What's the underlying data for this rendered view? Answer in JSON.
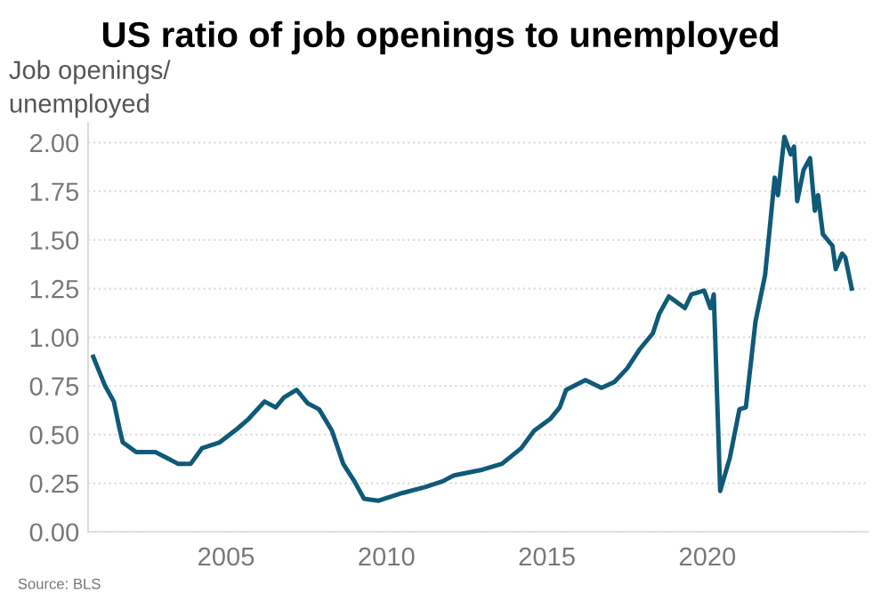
{
  "chart_data": {
    "type": "line",
    "title": "US ratio of job openings to unemployed",
    "ylabel": "Job openings/\nunemployed",
    "annotations": [
      "Source: BLS"
    ],
    "xlim": [
      2000.7,
      2025.0
    ],
    "xticks": [
      2005,
      2010,
      2015,
      2020
    ],
    "ylim": [
      0,
      2.1
    ],
    "yticks": [
      {
        "value": 0,
        "label": "0.00"
      },
      {
        "value": 0.25,
        "label": "0.25"
      },
      {
        "value": 0.5,
        "label": "0.50"
      },
      {
        "value": 0.75,
        "label": "0.75"
      },
      {
        "value": 1,
        "label": "1.00"
      },
      {
        "value": 1.25,
        "label": "1.25"
      },
      {
        "value": 1.5,
        "label": "1.50"
      },
      {
        "value": 1.75,
        "label": "1.75"
      },
      {
        "value": 2,
        "label": "2.00"
      }
    ],
    "grid": "y",
    "legend": false,
    "marker": "none",
    "line_style": "solid",
    "series": [
      {
        "color": "#0f5a78",
        "x": [
          2000.86,
          2001.23,
          2001.5,
          2001.68,
          2001.78,
          2002.2,
          2002.8,
          2003.15,
          2003.5,
          2003.9,
          2004.25,
          2004.8,
          2005.35,
          2005.7,
          2006.2,
          2006.55,
          2006.8,
          2007.2,
          2007.55,
          2007.9,
          2008.3,
          2008.65,
          2009.0,
          2009.3,
          2009.75,
          2010.5,
          2011.2,
          2011.75,
          2012.1,
          2013.0,
          2013.6,
          2014.2,
          2014.6,
          2015.1,
          2015.4,
          2015.6,
          2016.2,
          2016.7,
          2017.1,
          2017.5,
          2017.9,
          2018.3,
          2018.5,
          2018.8,
          2019.3,
          2019.5,
          2019.9,
          2020.1,
          2020.2,
          2020.4,
          2020.7,
          2021.0,
          2021.2,
          2021.5,
          2021.8,
          2022.1,
          2022.2,
          2022.4,
          2022.6,
          2022.7,
          2022.8,
          2023.0,
          2023.2,
          2023.35,
          2023.45,
          2023.6,
          2023.9,
          2024.0,
          2024.2,
          2024.3,
          2024.5
        ],
        "values": [
          0.9,
          0.75,
          0.67,
          0.53,
          0.46,
          0.41,
          0.41,
          0.38,
          0.35,
          0.35,
          0.43,
          0.46,
          0.53,
          0.58,
          0.67,
          0.64,
          0.69,
          0.73,
          0.66,
          0.63,
          0.52,
          0.35,
          0.26,
          0.17,
          0.16,
          0.2,
          0.23,
          0.26,
          0.29,
          0.32,
          0.35,
          0.43,
          0.52,
          0.58,
          0.64,
          0.73,
          0.78,
          0.74,
          0.77,
          0.84,
          0.94,
          1.02,
          1.12,
          1.21,
          1.15,
          1.22,
          1.24,
          1.15,
          1.22,
          0.21,
          0.38,
          0.63,
          0.64,
          1.08,
          1.32,
          1.82,
          1.73,
          2.03,
          1.94,
          1.98,
          1.7,
          1.86,
          1.92,
          1.65,
          1.73,
          1.53,
          1.47,
          1.35,
          1.43,
          1.41,
          1.25
        ]
      }
    ]
  }
}
